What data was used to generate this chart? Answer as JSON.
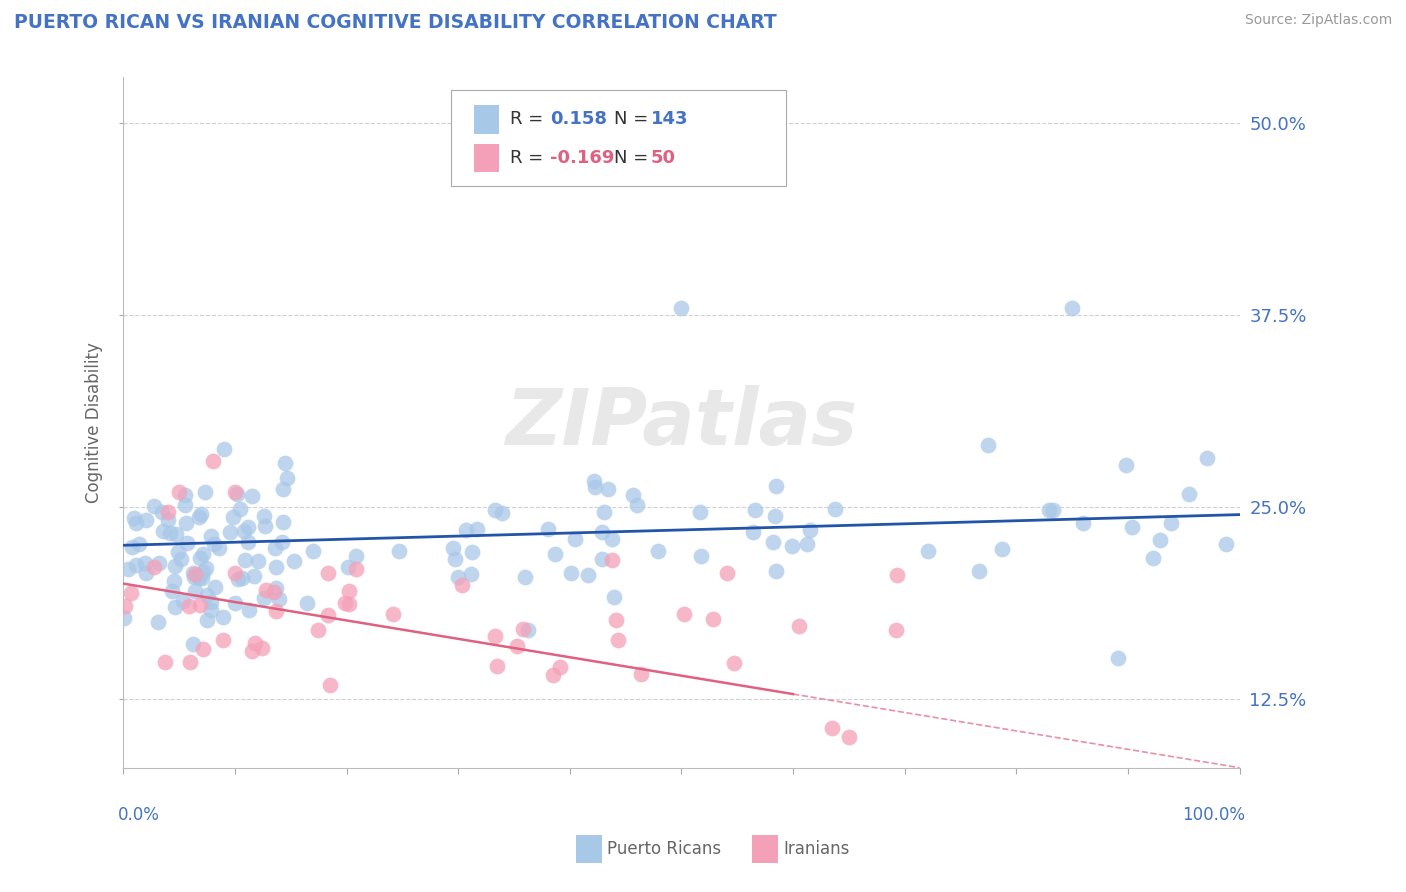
{
  "title": "PUERTO RICAN VS IRANIAN COGNITIVE DISABILITY CORRELATION CHART",
  "source": "Source: ZipAtlas.com",
  "ylabel": "Cognitive Disability",
  "xlim": [
    0,
    100
  ],
  "ylim": [
    8,
    53
  ],
  "yticks": [
    12.5,
    25.0,
    37.5,
    50.0
  ],
  "pr_R": 0.158,
  "pr_N": 143,
  "ir_R": -0.169,
  "ir_N": 50,
  "blue_color": "#a8c8e8",
  "blue_line": "#2255aa",
  "pink_color": "#f4a0b8",
  "pink_line": "#e06080",
  "title_color": "#4472c4",
  "label_color": "#4472c4",
  "background_color": "#ffffff",
  "grid_color": "#cccccc",
  "text_color": "#666666"
}
